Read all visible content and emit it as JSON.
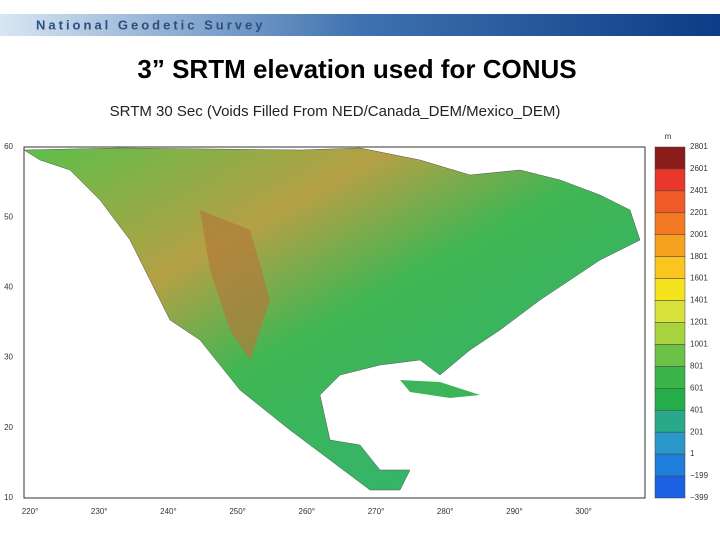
{
  "header": {
    "organization": "National Geodetic Survey"
  },
  "slide": {
    "title": "3” SRTM elevation used for CONUS"
  },
  "map": {
    "title": "SRTM 30 Sec (Voids Filled From NED/Canada_DEM/Mexico_DEM)",
    "latitude_labels": [
      "60",
      "50",
      "40",
      "30",
      "20",
      "10"
    ],
    "longitude_labels": [
      "220°",
      "230°",
      "240°",
      "250°",
      "260°",
      "270°",
      "280°",
      "290°",
      "300°"
    ],
    "colorbar": {
      "unit": "m",
      "labels": [
        "2801",
        "2601",
        "2401",
        "2201",
        "2001",
        "1801",
        "1601",
        "1401",
        "1201",
        "1001",
        "801",
        "601",
        "401",
        "201",
        "1",
        "−199",
        "−399"
      ],
      "colors": [
        "#8b1c1c",
        "#e8372b",
        "#f05a28",
        "#f37a22",
        "#f7a21e",
        "#fbc520",
        "#f5e31e",
        "#d7e23a",
        "#a9d33d",
        "#6cc247",
        "#3bb54a",
        "#25ad4a",
        "#2aa98a",
        "#2a98c9",
        "#1f7ddb",
        "#1b5fe3"
      ]
    }
  }
}
